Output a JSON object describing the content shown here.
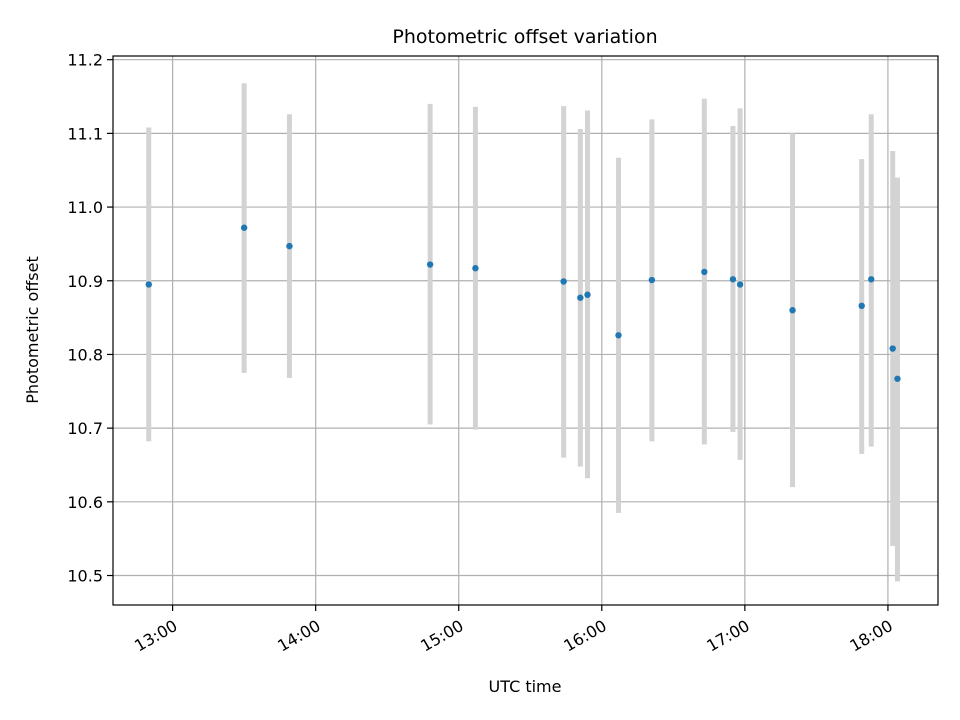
{
  "chart_data": {
    "type": "scatter",
    "title": "Photometric offset variation",
    "xlabel": "UTC time",
    "ylabel": "Photometric offset",
    "x_axis_type": "time",
    "xlim": [
      "12:35",
      "18:21"
    ],
    "ylim": [
      10.46,
      11.205
    ],
    "xticks": [
      "13:00",
      "14:00",
      "15:00",
      "16:00",
      "17:00",
      "18:00"
    ],
    "yticks": [
      10.5,
      10.6,
      10.7,
      10.8,
      10.9,
      11.0,
      11.1,
      11.2
    ],
    "ytick_labels": [
      "10.5",
      "10.6",
      "10.7",
      "10.8",
      "10.9",
      "11.0",
      "11.1",
      "11.2"
    ],
    "grid": true,
    "point_color": "#1f77b4",
    "errorbar_color": "#d3d3d3",
    "points": [
      {
        "x": "12:50",
        "y": 10.895,
        "ylow": 10.682,
        "yhigh": 11.108
      },
      {
        "x": "13:30",
        "y": 10.972,
        "ylow": 10.775,
        "yhigh": 11.168
      },
      {
        "x": "13:49",
        "y": 10.947,
        "ylow": 10.768,
        "yhigh": 11.126
      },
      {
        "x": "14:48",
        "y": 10.922,
        "ylow": 10.705,
        "yhigh": 11.14
      },
      {
        "x": "15:07",
        "y": 10.917,
        "ylow": 10.698,
        "yhigh": 11.136
      },
      {
        "x": "15:44",
        "y": 10.899,
        "ylow": 10.66,
        "yhigh": 11.137
      },
      {
        "x": "15:51",
        "y": 10.877,
        "ylow": 10.648,
        "yhigh": 11.106
      },
      {
        "x": "15:54",
        "y": 10.881,
        "ylow": 10.632,
        "yhigh": 11.131
      },
      {
        "x": "16:07",
        "y": 10.826,
        "ylow": 10.585,
        "yhigh": 11.067
      },
      {
        "x": "16:21",
        "y": 10.901,
        "ylow": 10.682,
        "yhigh": 11.119
      },
      {
        "x": "16:43",
        "y": 10.912,
        "ylow": 10.678,
        "yhigh": 11.147
      },
      {
        "x": "16:55",
        "y": 10.902,
        "ylow": 10.695,
        "yhigh": 11.11
      },
      {
        "x": "16:58",
        "y": 10.895,
        "ylow": 10.657,
        "yhigh": 11.134
      },
      {
        "x": "17:20",
        "y": 10.86,
        "ylow": 10.62,
        "yhigh": 11.1
      },
      {
        "x": "17:49",
        "y": 10.866,
        "ylow": 10.665,
        "yhigh": 11.065
      },
      {
        "x": "17:53",
        "y": 10.902,
        "ylow": 10.675,
        "yhigh": 11.126
      },
      {
        "x": "18:02",
        "y": 10.808,
        "ylow": 10.54,
        "yhigh": 11.076
      },
      {
        "x": "18:04",
        "y": 10.767,
        "ylow": 10.492,
        "yhigh": 11.04
      }
    ]
  }
}
